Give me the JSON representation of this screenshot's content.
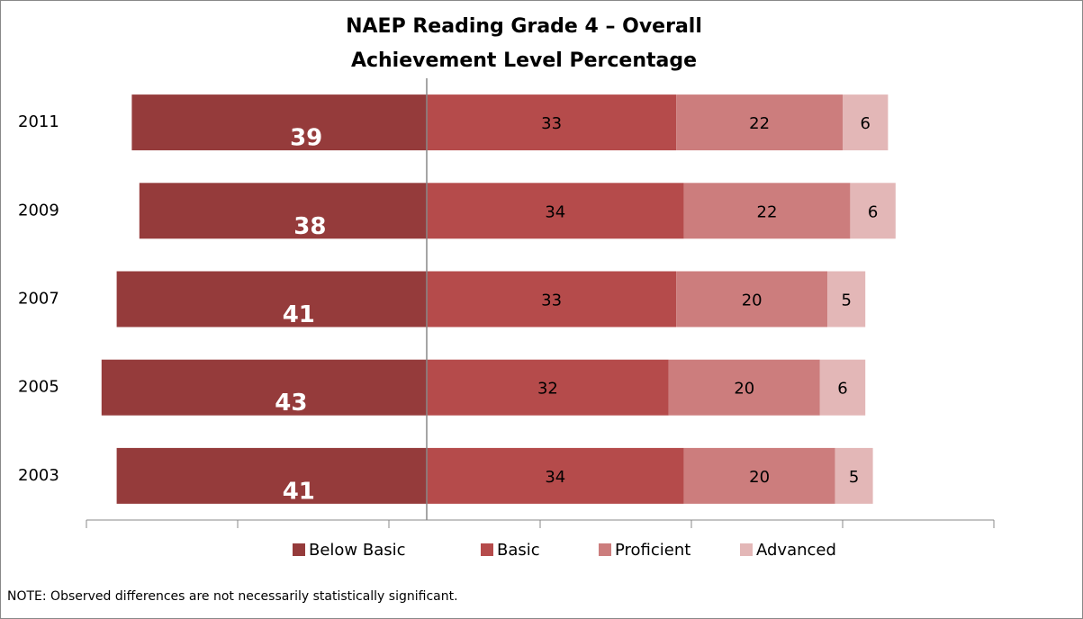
{
  "chart_data": {
    "type": "diverging_bar",
    "title": [
      "NAEP Reading Grade 4 – Overall",
      "Achievement Level Percentage"
    ],
    "categories": [
      "2011",
      "2009",
      "2007",
      "2005",
      "2003"
    ],
    "series": [
      {
        "name": "Below Basic",
        "color": "#953b3b",
        "values": [
          39,
          38,
          41,
          43,
          41
        ]
      },
      {
        "name": "Basic",
        "color": "#b54b4b",
        "values": [
          33,
          34,
          33,
          32,
          34
        ]
      },
      {
        "name": "Proficient",
        "color": "#cc7d7d",
        "values": [
          22,
          22,
          20,
          20,
          20
        ]
      },
      {
        "name": "Advanced",
        "color": "#e3b7b7",
        "values": [
          6,
          6,
          5,
          6,
          5
        ]
      }
    ],
    "left_series": 1,
    "xlim": [
      -45,
      75
    ],
    "xticks": [
      -45,
      -25,
      -5,
      15,
      35,
      55,
      75
    ],
    "legend": "bottom",
    "note": "NOTE:  Observed differences are not necessarily statistically significant."
  }
}
